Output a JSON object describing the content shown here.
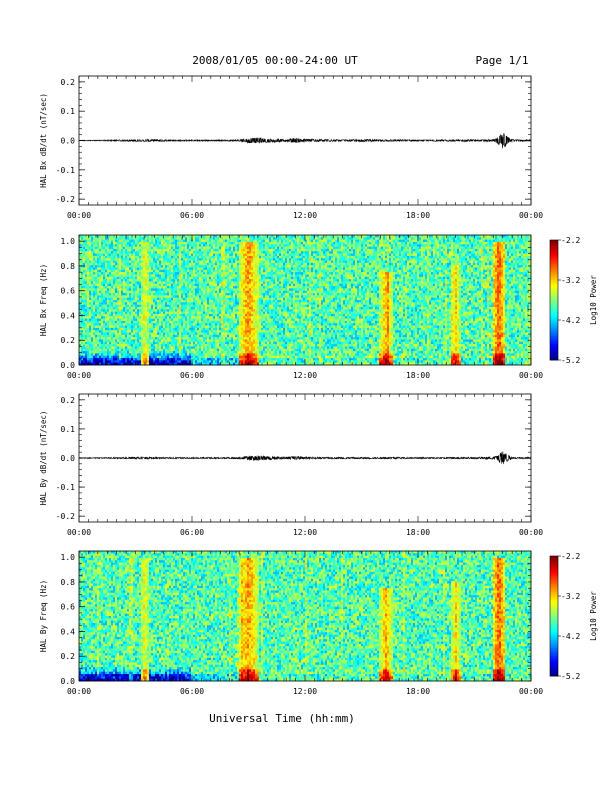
{
  "header": {
    "title": "2008/01/05  00:00-24:00 UT",
    "page": "Page 1/1"
  },
  "xlabel": "Universal Time (hh:mm)",
  "chart_data": [
    {
      "type": "line",
      "ylabel": "HAL Bx dB/dt (nT/sec)",
      "xlim": [
        "00:00",
        "24:00"
      ],
      "x_ticks": [
        "00:00",
        "06:00",
        "12:00",
        "18:00",
        "00:00"
      ],
      "ylim": [
        -0.22,
        0.22
      ],
      "y_ticks": [
        "0.2",
        "0.1",
        "0.0",
        "-0.1",
        "-0.2"
      ],
      "series": [
        {
          "x_hours": [
            0,
            2,
            3.5,
            4.5,
            6,
            7.5,
            8.5,
            9,
            9.5,
            10,
            11,
            11.5,
            12,
            13,
            14,
            15,
            16,
            17,
            18,
            19,
            20,
            20.5,
            21,
            22,
            22.2,
            22.5,
            22.8,
            23,
            24
          ],
          "envelope": [
            0.001,
            0.002,
            0.004,
            0.003,
            0.002,
            0.002,
            0.003,
            0.008,
            0.01,
            0.007,
            0.004,
            0.009,
            0.005,
            0.004,
            0.003,
            0.004,
            0.003,
            0.003,
            0.002,
            0.003,
            0.003,
            0.004,
            0.003,
            0.004,
            0.01,
            0.03,
            0.012,
            0.004,
            0.002
          ]
        }
      ]
    },
    {
      "type": "heatmap",
      "ylabel": "HAL Bx Freq (Hz)",
      "xlim": [
        "00:00",
        "24:00"
      ],
      "x_ticks": [
        "00:00",
        "06:00",
        "12:00",
        "18:00",
        "00:00"
      ],
      "ylim": [
        0,
        1.05
      ],
      "y_ticks": [
        "1.0",
        "0.8",
        "0.6",
        "0.4",
        "0.2",
        "0.0"
      ],
      "colorbar": {
        "label": "Log10 Power",
        "ticks": [
          "-2.2",
          "-3.2",
          "-4.2",
          "-5.2"
        ],
        "range": [
          -5.2,
          -2.2
        ]
      },
      "features": [
        {
          "t_center": 3.5,
          "t_width": 0.25,
          "fmax": 1.0,
          "level": -3.3
        },
        {
          "t_center": 9.0,
          "t_width": 0.55,
          "fmax": 1.0,
          "level": -3.0
        },
        {
          "t_center": 16.3,
          "t_width": 0.4,
          "fmax": 0.75,
          "level": -3.1
        },
        {
          "t_center": 20.0,
          "t_width": 0.3,
          "fmax": 0.8,
          "level": -3.2
        },
        {
          "t_center": 22.3,
          "t_width": 0.35,
          "fmax": 1.0,
          "level": -2.8
        }
      ]
    },
    {
      "type": "line",
      "ylabel": "HAL By dB/dt (nT/sec)",
      "xlim": [
        "00:00",
        "24:00"
      ],
      "x_ticks": [
        "00:00",
        "06:00",
        "12:00",
        "18:00",
        "00:00"
      ],
      "ylim": [
        -0.22,
        0.22
      ],
      "y_ticks": [
        "0.2",
        "0.1",
        "0.0",
        "-0.1",
        "-0.2"
      ],
      "series": [
        {
          "x_hours": [
            0,
            2,
            3.5,
            4.5,
            6,
            7.5,
            8.5,
            9,
            9.5,
            10,
            11,
            11.5,
            12,
            13,
            14,
            15,
            16,
            17,
            18,
            19,
            20,
            20.5,
            21,
            22,
            22.2,
            22.5,
            22.8,
            23,
            24
          ],
          "envelope": [
            0.001,
            0.002,
            0.004,
            0.002,
            0.002,
            0.002,
            0.003,
            0.007,
            0.009,
            0.006,
            0.004,
            0.006,
            0.004,
            0.003,
            0.003,
            0.003,
            0.003,
            0.003,
            0.002,
            0.002,
            0.003,
            0.003,
            0.003,
            0.004,
            0.009,
            0.024,
            0.01,
            0.003,
            0.002
          ]
        }
      ]
    },
    {
      "type": "heatmap",
      "ylabel": "HAL By Freq (Hz)",
      "xlim": [
        "00:00",
        "24:00"
      ],
      "x_ticks": [
        "00:00",
        "06:00",
        "12:00",
        "18:00",
        "00:00"
      ],
      "ylim": [
        0,
        1.05
      ],
      "y_ticks": [
        "1.0",
        "0.8",
        "0.6",
        "0.4",
        "0.2",
        "0.0"
      ],
      "colorbar": {
        "label": "Log10 Power",
        "ticks": [
          "-2.2",
          "-3.2",
          "-4.2",
          "-5.2"
        ],
        "range": [
          -5.2,
          -2.2
        ]
      },
      "features": [
        {
          "t_center": 3.5,
          "t_width": 0.25,
          "fmax": 1.0,
          "level": -3.3
        },
        {
          "t_center": 9.0,
          "t_width": 0.55,
          "fmax": 1.0,
          "level": -3.0
        },
        {
          "t_center": 16.3,
          "t_width": 0.4,
          "fmax": 0.75,
          "level": -3.1
        },
        {
          "t_center": 20.0,
          "t_width": 0.3,
          "fmax": 0.8,
          "level": -3.2
        },
        {
          "t_center": 22.3,
          "t_width": 0.35,
          "fmax": 1.0,
          "level": -2.8
        }
      ]
    }
  ]
}
